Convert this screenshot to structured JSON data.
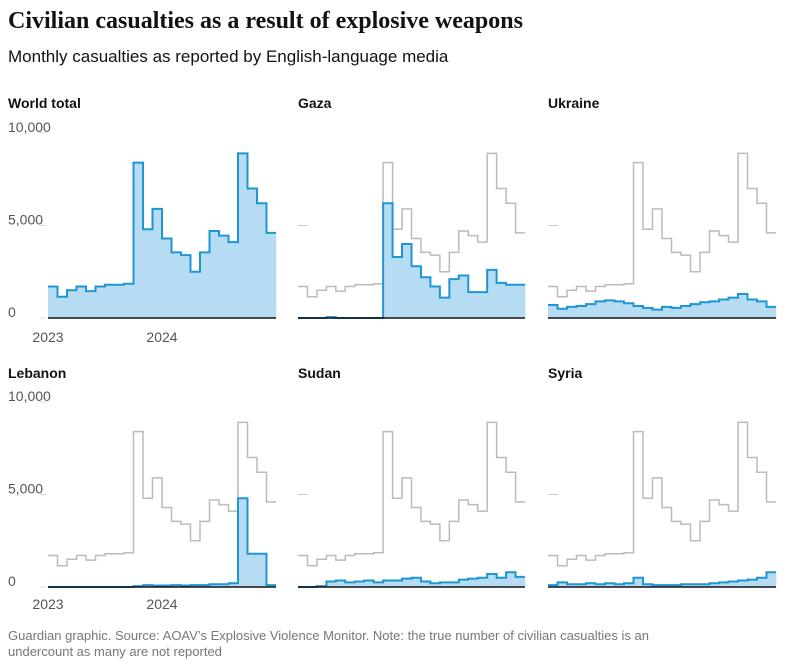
{
  "title": "Civilian casualties as a result of explosive weapons",
  "subtitle": "Monthly casualties as reported by English-language media",
  "source": "Guardian graphic. Source: AOAV’s Explosive Violence Monitor. Note: the true number of civilian casualties is an undercount as many are not reported",
  "chart_data": [
    {
      "type": "step",
      "title": "World total",
      "color": "#1e96d4",
      "fill": "#b5dcf2",
      "categories": [
        "2023",
        null,
        null,
        null,
        null,
        null,
        null,
        null,
        null,
        null,
        null,
        null,
        "2024",
        null,
        null,
        null,
        null,
        null,
        null,
        null,
        null,
        null,
        null,
        null
      ],
      "values": [
        1700,
        1150,
        1500,
        1700,
        1450,
        1700,
        1800,
        1800,
        1850,
        8400,
        4800,
        5900,
        4300,
        3550,
        3400,
        2500,
        3550,
        4700,
        4450,
        4100,
        8900,
        7000,
        6200,
        4600
      ],
      "ylim": [
        0,
        10000
      ],
      "yticks": [
        {
          "value": 0,
          "label": "0"
        },
        {
          "value": 5000,
          "label": "5,000"
        },
        {
          "value": 10000,
          "label": "10,000"
        }
      ]
    },
    {
      "type": "step",
      "title": "Gaza",
      "color": "#1e96d4",
      "fill": "#b5dcf2",
      "values": [
        0,
        0,
        0,
        50,
        0,
        0,
        0,
        0,
        0,
        6200,
        3300,
        4000,
        2800,
        2200,
        1700,
        1100,
        2100,
        2300,
        1400,
        1400,
        2600,
        1900,
        1800,
        1800
      ],
      "ylim": [
        0,
        10000
      ]
    },
    {
      "type": "step",
      "title": "Ukraine",
      "color": "#1e96d4",
      "fill": "#b5dcf2",
      "values": [
        700,
        500,
        600,
        650,
        750,
        900,
        950,
        900,
        800,
        650,
        550,
        450,
        600,
        550,
        650,
        750,
        850,
        900,
        1000,
        1100,
        1300,
        1000,
        900,
        600
      ],
      "ylim": [
        0,
        10000
      ]
    },
    {
      "type": "step",
      "title": "Lebanon",
      "color": "#1e96d4",
      "fill": "#b5dcf2",
      "categories": [
        "2023",
        null,
        null,
        null,
        null,
        null,
        null,
        null,
        null,
        null,
        null,
        null,
        "2024",
        null,
        null,
        null,
        null,
        null,
        null,
        null,
        null,
        null,
        null,
        null
      ],
      "values": [
        0,
        0,
        0,
        0,
        0,
        0,
        0,
        0,
        0,
        50,
        100,
        80,
        80,
        100,
        80,
        100,
        100,
        150,
        150,
        200,
        4800,
        1800,
        1800,
        100
      ],
      "ylim": [
        0,
        10000
      ],
      "yticks": [
        {
          "value": 0,
          "label": "0"
        },
        {
          "value": 5000,
          "label": "5,000"
        },
        {
          "value": 10000,
          "label": "10,000"
        }
      ]
    },
    {
      "type": "step",
      "title": "Sudan",
      "color": "#1e96d4",
      "fill": "#b5dcf2",
      "values": [
        0,
        0,
        50,
        300,
        350,
        250,
        300,
        350,
        250,
        350,
        350,
        450,
        500,
        300,
        200,
        250,
        250,
        400,
        450,
        500,
        700,
        500,
        800,
        550
      ],
      "ylim": [
        0,
        10000
      ]
    },
    {
      "type": "step",
      "title": "Syria",
      "color": "#1e96d4",
      "fill": "#b5dcf2",
      "values": [
        100,
        250,
        150,
        150,
        200,
        150,
        200,
        150,
        200,
        500,
        150,
        100,
        100,
        100,
        150,
        150,
        150,
        200,
        250,
        300,
        350,
        400,
        500,
        800
      ],
      "ylim": [
        0,
        10000
      ]
    }
  ]
}
